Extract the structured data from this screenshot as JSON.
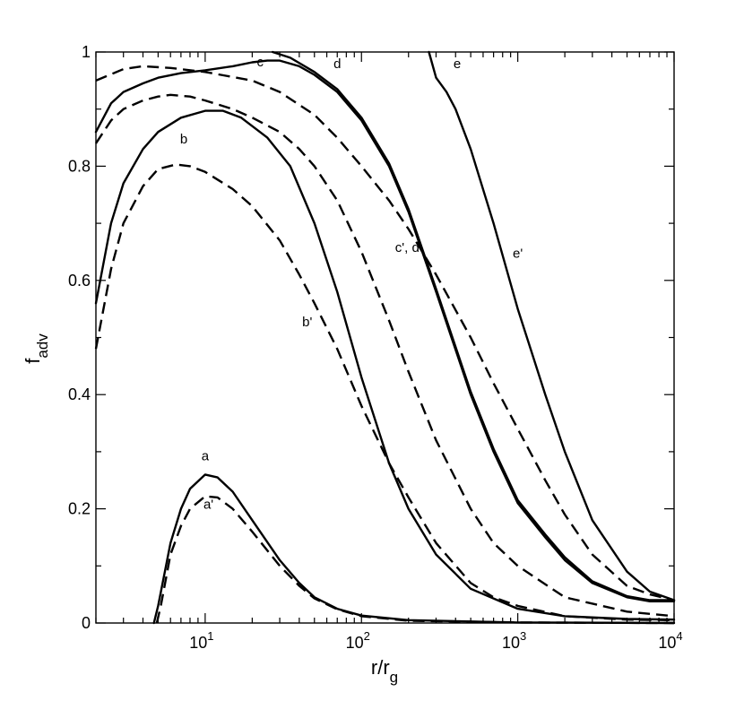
{
  "chart_data": {
    "type": "line",
    "xlabel_main": "r/r",
    "xlabel_sub": "g",
    "ylabel_main": "f",
    "ylabel_sub": "adv",
    "xscale": "log",
    "xlim": [
      2,
      10000
    ],
    "ylim": [
      0,
      1
    ],
    "grid": false,
    "legend": "none",
    "x_ticks": [
      {
        "value": 10,
        "base": "10",
        "exp": "1"
      },
      {
        "value": 100,
        "base": "10",
        "exp": "2"
      },
      {
        "value": 1000,
        "base": "10",
        "exp": "3"
      },
      {
        "value": 10000,
        "base": "10",
        "exp": "4"
      }
    ],
    "y_ticks": [
      {
        "value": 0,
        "label": "0"
      },
      {
        "value": 0.2,
        "label": "0.2"
      },
      {
        "value": 0.4,
        "label": "0.4"
      },
      {
        "value": 0.6,
        "label": "0.6"
      },
      {
        "value": 0.8,
        "label": "0.8"
      },
      {
        "value": 1,
        "label": "1"
      }
    ],
    "series": [
      {
        "label": "a",
        "style": "solid",
        "points": [
          [
            4.7,
            0
          ],
          [
            5,
            0.03
          ],
          [
            6,
            0.14
          ],
          [
            7,
            0.2
          ],
          [
            8,
            0.235
          ],
          [
            10,
            0.26
          ],
          [
            12,
            0.255
          ],
          [
            15,
            0.23
          ],
          [
            20,
            0.18
          ],
          [
            30,
            0.11
          ],
          [
            40,
            0.07
          ],
          [
            50,
            0.045
          ],
          [
            70,
            0.025
          ],
          [
            100,
            0.013
          ],
          [
            200,
            0.005
          ],
          [
            1000,
            0.001
          ],
          [
            10000,
            0
          ]
        ]
      },
      {
        "label": "a'",
        "style": "dashed",
        "points": [
          [
            4.9,
            0
          ],
          [
            5.2,
            0.03
          ],
          [
            6,
            0.12
          ],
          [
            7,
            0.17
          ],
          [
            8,
            0.2
          ],
          [
            10,
            0.222
          ],
          [
            12,
            0.22
          ],
          [
            15,
            0.2
          ],
          [
            20,
            0.16
          ],
          [
            30,
            0.1
          ],
          [
            40,
            0.065
          ],
          [
            50,
            0.043
          ],
          [
            70,
            0.024
          ],
          [
            100,
            0.012
          ],
          [
            200,
            0.004
          ],
          [
            1000,
            0.001
          ],
          [
            10000,
            0
          ]
        ]
      },
      {
        "label": "b",
        "style": "solid",
        "points": [
          [
            2,
            0.56
          ],
          [
            2.5,
            0.7
          ],
          [
            3,
            0.77
          ],
          [
            4,
            0.83
          ],
          [
            5,
            0.86
          ],
          [
            7,
            0.885
          ],
          [
            10,
            0.897
          ],
          [
            13,
            0.897
          ],
          [
            17,
            0.885
          ],
          [
            25,
            0.85
          ],
          [
            35,
            0.8
          ],
          [
            50,
            0.7
          ],
          [
            70,
            0.58
          ],
          [
            100,
            0.43
          ],
          [
            150,
            0.28
          ],
          [
            200,
            0.2
          ],
          [
            300,
            0.12
          ],
          [
            500,
            0.06
          ],
          [
            1000,
            0.025
          ],
          [
            2000,
            0.012
          ],
          [
            5000,
            0.007
          ],
          [
            10000,
            0.006
          ]
        ]
      },
      {
        "label": "b'",
        "style": "dashed",
        "points": [
          [
            2,
            0.48
          ],
          [
            2.5,
            0.62
          ],
          [
            3,
            0.7
          ],
          [
            4,
            0.765
          ],
          [
            5,
            0.795
          ],
          [
            6.5,
            0.803
          ],
          [
            8,
            0.8
          ],
          [
            10,
            0.79
          ],
          [
            15,
            0.76
          ],
          [
            20,
            0.73
          ],
          [
            30,
            0.67
          ],
          [
            40,
            0.61
          ],
          [
            50,
            0.56
          ],
          [
            70,
            0.48
          ],
          [
            100,
            0.38
          ],
          [
            150,
            0.28
          ],
          [
            200,
            0.22
          ],
          [
            300,
            0.14
          ],
          [
            500,
            0.07
          ],
          [
            700,
            0.045
          ],
          [
            1000,
            0.03
          ],
          [
            2000,
            0.012
          ],
          [
            5000,
            0.006
          ],
          [
            10000,
            0.005
          ]
        ]
      },
      {
        "label": "c",
        "style": "solid",
        "points": [
          [
            2,
            0.86
          ],
          [
            2.5,
            0.91
          ],
          [
            3,
            0.93
          ],
          [
            4,
            0.945
          ],
          [
            5,
            0.955
          ],
          [
            7,
            0.963
          ],
          [
            10,
            0.968
          ],
          [
            15,
            0.975
          ],
          [
            20,
            0.982
          ],
          [
            25,
            0.985
          ],
          [
            30,
            0.985
          ],
          [
            40,
            0.975
          ],
          [
            50,
            0.96
          ],
          [
            70,
            0.93
          ],
          [
            100,
            0.88
          ],
          [
            150,
            0.8
          ],
          [
            200,
            0.72
          ],
          [
            300,
            0.58
          ],
          [
            500,
            0.4
          ],
          [
            700,
            0.3
          ],
          [
            1000,
            0.21
          ],
          [
            1500,
            0.15
          ],
          [
            2000,
            0.11
          ],
          [
            3000,
            0.07
          ],
          [
            5000,
            0.045
          ],
          [
            7000,
            0.038
          ],
          [
            10000,
            0.038
          ]
        ]
      },
      {
        "label": "d",
        "style": "solid",
        "points": [
          [
            27,
            1.0
          ],
          [
            35,
            0.99
          ],
          [
            50,
            0.965
          ],
          [
            70,
            0.935
          ],
          [
            100,
            0.885
          ],
          [
            150,
            0.805
          ],
          [
            200,
            0.725
          ],
          [
            300,
            0.585
          ],
          [
            500,
            0.405
          ],
          [
            700,
            0.305
          ],
          [
            1000,
            0.215
          ],
          [
            1500,
            0.155
          ],
          [
            2000,
            0.115
          ],
          [
            3000,
            0.073
          ],
          [
            5000,
            0.047
          ],
          [
            7000,
            0.04
          ],
          [
            10000,
            0.04
          ]
        ]
      },
      {
        "label": "c', d'",
        "style": "dashed",
        "points": [
          [
            2,
            0.84
          ],
          [
            2.5,
            0.88
          ],
          [
            3,
            0.9
          ],
          [
            4,
            0.915
          ],
          [
            5,
            0.922
          ],
          [
            6,
            0.925
          ],
          [
            8,
            0.922
          ],
          [
            10,
            0.915
          ],
          [
            15,
            0.9
          ],
          [
            20,
            0.885
          ],
          [
            30,
            0.86
          ],
          [
            40,
            0.83
          ],
          [
            50,
            0.8
          ],
          [
            70,
            0.74
          ],
          [
            100,
            0.65
          ],
          [
            150,
            0.53
          ],
          [
            200,
            0.44
          ],
          [
            300,
            0.32
          ],
          [
            500,
            0.2
          ],
          [
            700,
            0.14
          ],
          [
            1000,
            0.1
          ],
          [
            2000,
            0.045
          ],
          [
            5000,
            0.02
          ],
          [
            10000,
            0.012
          ]
        ]
      },
      {
        "label": "e",
        "style": "solid",
        "points": [
          [
            270,
            1.0
          ],
          [
            300,
            0.955
          ],
          [
            350,
            0.93
          ],
          [
            400,
            0.9
          ],
          [
            500,
            0.83
          ],
          [
            700,
            0.7
          ],
          [
            1000,
            0.55
          ],
          [
            1500,
            0.4
          ],
          [
            2000,
            0.3
          ],
          [
            3000,
            0.18
          ],
          [
            5000,
            0.09
          ],
          [
            7000,
            0.055
          ],
          [
            10000,
            0.04
          ]
        ]
      },
      {
        "label": "e'",
        "style": "dashed",
        "points": [
          [
            2,
            0.95
          ],
          [
            3,
            0.97
          ],
          [
            4,
            0.975
          ],
          [
            6,
            0.972
          ],
          [
            10,
            0.965
          ],
          [
            20,
            0.95
          ],
          [
            30,
            0.93
          ],
          [
            50,
            0.89
          ],
          [
            70,
            0.85
          ],
          [
            100,
            0.8
          ],
          [
            150,
            0.74
          ],
          [
            200,
            0.69
          ],
          [
            300,
            0.61
          ],
          [
            500,
            0.5
          ],
          [
            700,
            0.42
          ],
          [
            1000,
            0.34
          ],
          [
            1500,
            0.25
          ],
          [
            2000,
            0.19
          ],
          [
            3000,
            0.12
          ],
          [
            5000,
            0.065
          ],
          [
            7000,
            0.05
          ],
          [
            10000,
            0.04
          ]
        ]
      }
    ],
    "annotations": [
      {
        "text": "a",
        "x": 10,
        "y": 0.285
      },
      {
        "text": "a'",
        "x": 10.5,
        "y": 0.2
      },
      {
        "text": "b",
        "x": 7.3,
        "y": 0.84
      },
      {
        "text": "b'",
        "x": 45,
        "y": 0.52
      },
      {
        "text": "c",
        "x": 22.5,
        "y": 0.975
      },
      {
        "text": "d",
        "x": 70,
        "y": 0.972
      },
      {
        "text": "c', d'",
        "x": 200,
        "y": 0.65
      },
      {
        "text": "e",
        "x": 410,
        "y": 0.972
      },
      {
        "text": "e'",
        "x": 1000,
        "y": 0.64
      }
    ]
  }
}
